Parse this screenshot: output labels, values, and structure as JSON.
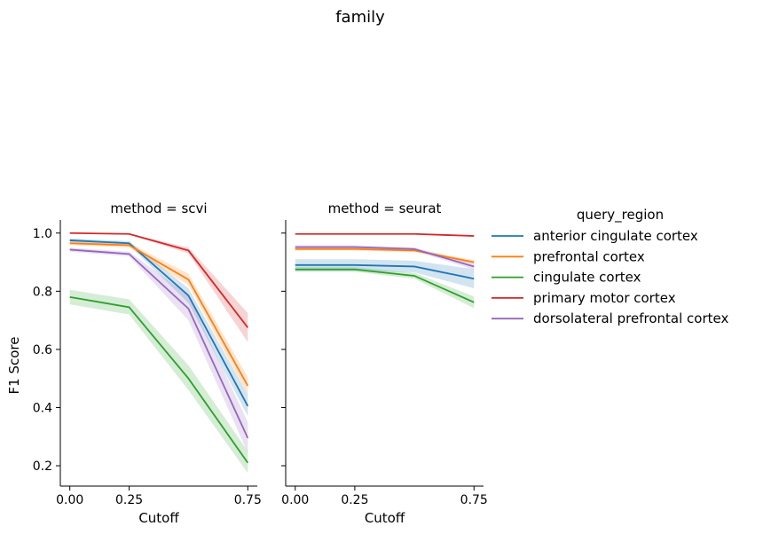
{
  "chart_data": {
    "type": "line",
    "suptitle": "family",
    "ylabel": "F1 Score",
    "xlabel": "Cutoff",
    "x": [
      0.0,
      0.25,
      0.5,
      0.75
    ],
    "xticks": [
      "0.00",
      "0.25",
      "0.75"
    ],
    "xtick_values": [
      0.0,
      0.25,
      0.75
    ],
    "yticks": [
      "0.2",
      "0.4",
      "0.6",
      "0.8",
      "1.0"
    ],
    "ytick_values": [
      0.2,
      0.4,
      0.6,
      0.8,
      1.0
    ],
    "ylim": [
      0.13,
      1.045
    ],
    "xlim": [
      -0.04,
      0.79
    ],
    "grid": false,
    "legend": {
      "title": "query_region",
      "placement": "right outside",
      "entries": [
        "anterior cingulate cortex",
        "prefrontal cortex",
        "cingulate cortex",
        "primary motor cortex",
        "dorsolateral prefrontal cortex"
      ]
    },
    "colors": [
      "#1f77b4",
      "#ff7f0e",
      "#2ca02c",
      "#d62728",
      "#9467bd"
    ],
    "panels": [
      {
        "title": "method = scvi",
        "series": [
          {
            "name": "anterior cingulate cortex",
            "values": [
              0.975,
              0.965,
              0.785,
              0.405
            ],
            "lower": [
              0.968,
              0.958,
              0.76,
              0.37
            ],
            "upper": [
              0.982,
              0.972,
              0.81,
              0.445
            ]
          },
          {
            "name": "prefrontal cortex",
            "values": [
              0.965,
              0.958,
              0.84,
              0.475
            ],
            "lower": [
              0.958,
              0.95,
              0.82,
              0.445
            ],
            "upper": [
              0.972,
              0.966,
              0.86,
              0.505
            ]
          },
          {
            "name": "cingulate cortex",
            "values": [
              0.78,
              0.745,
              0.5,
              0.21
            ],
            "lower": [
              0.755,
              0.72,
              0.46,
              0.175
            ],
            "upper": [
              0.805,
              0.772,
              0.545,
              0.25
            ]
          },
          {
            "name": "primary motor cortex",
            "values": [
              1.0,
              0.997,
              0.94,
              0.675
            ],
            "lower": [
              0.998,
              0.995,
              0.93,
              0.625
            ],
            "upper": [
              1.002,
              0.999,
              0.95,
              0.725
            ]
          },
          {
            "name": "dorsolateral prefrontal cortex",
            "values": [
              0.943,
              0.928,
              0.74,
              0.295
            ],
            "lower": [
              0.936,
              0.92,
              0.7,
              0.245
            ],
            "upper": [
              0.95,
              0.936,
              0.785,
              0.35
            ]
          }
        ]
      },
      {
        "title": "method = seurat",
        "series": [
          {
            "name": "anterior cingulate cortex",
            "values": [
              0.89,
              0.89,
              0.885,
              0.843
            ],
            "lower": [
              0.87,
              0.87,
              0.865,
              0.81
            ],
            "upper": [
              0.91,
              0.91,
              0.905,
              0.876
            ]
          },
          {
            "name": "prefrontal cortex",
            "values": [
              0.945,
              0.945,
              0.94,
              0.9
            ],
            "lower": [
              0.94,
              0.94,
              0.935,
              0.893
            ],
            "upper": [
              0.95,
              0.95,
              0.945,
              0.907
            ]
          },
          {
            "name": "cingulate cortex",
            "values": [
              0.875,
              0.875,
              0.853,
              0.762
            ],
            "lower": [
              0.867,
              0.867,
              0.843,
              0.742
            ],
            "upper": [
              0.883,
              0.883,
              0.863,
              0.782
            ]
          },
          {
            "name": "primary motor cortex",
            "values": [
              0.997,
              0.997,
              0.997,
              0.99
            ],
            "lower": [
              0.995,
              0.995,
              0.995,
              0.987
            ],
            "upper": [
              0.999,
              0.999,
              0.999,
              0.993
            ]
          },
          {
            "name": "dorsolateral prefrontal cortex",
            "values": [
              0.952,
              0.952,
              0.945,
              0.885
            ],
            "lower": [
              0.946,
              0.946,
              0.939,
              0.874
            ],
            "upper": [
              0.958,
              0.958,
              0.951,
              0.896
            ]
          }
        ]
      }
    ]
  }
}
